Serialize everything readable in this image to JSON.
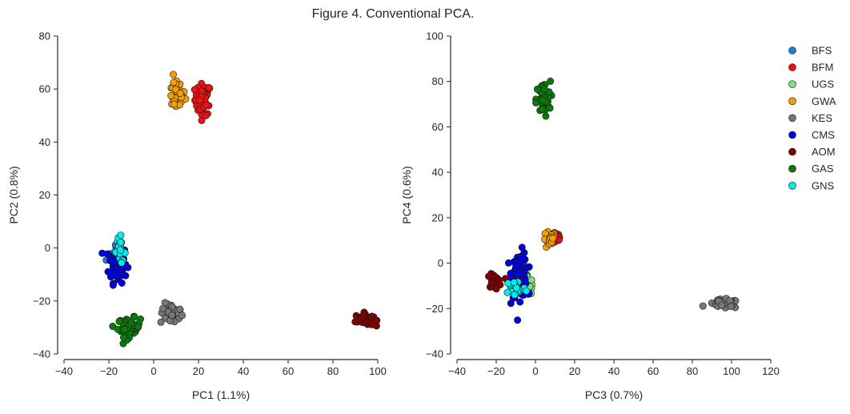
{
  "figure": {
    "title": "Figure 4. Conventional PCA."
  },
  "legend": {
    "placement": "right",
    "entries": [
      {
        "name": "BFS",
        "color": "#1f77e8"
      },
      {
        "name": "BFM",
        "color": "#ee1111"
      },
      {
        "name": "UGS",
        "color": "#7ee07e"
      },
      {
        "name": "GWA",
        "color": "#f5a000"
      },
      {
        "name": "KES",
        "color": "#777777"
      },
      {
        "name": "CMS",
        "color": "#0000dd"
      },
      {
        "name": "AOM",
        "color": "#800000"
      },
      {
        "name": "GAS",
        "color": "#0a7a0a"
      },
      {
        "name": "GNS",
        "color": "#00eeee"
      }
    ]
  },
  "chart_data": [
    {
      "type": "scatter",
      "xlabel": "PC1 (1.1%)",
      "ylabel": "PC2 (0.8%)",
      "xlim": [
        -40,
        100
      ],
      "ylim": [
        -40,
        80
      ],
      "xticks": [
        "−40",
        "−20",
        "0",
        "20",
        "40",
        "60",
        "80",
        "100"
      ],
      "yticks": [
        "−40",
        "−20",
        "0",
        "20",
        "40",
        "60",
        "80"
      ],
      "grid": false,
      "clusters": [
        {
          "name": "BFS",
          "x": -16,
          "y": -3,
          "spread_x": 2.5,
          "spread_y": 3,
          "n": 12
        },
        {
          "name": "BFM",
          "x": 22,
          "y": 56,
          "spread_x": 1.8,
          "spread_y": 3,
          "n": 45
        },
        {
          "name": "GWA",
          "x": 10,
          "y": 58,
          "spread_x": 2,
          "spread_y": 3,
          "n": 30
        },
        {
          "name": "KES",
          "x": 8,
          "y": -25,
          "spread_x": 2.5,
          "spread_y": 2,
          "n": 28
        },
        {
          "name": "CMS",
          "x": -16,
          "y": -6,
          "spread_x": 2,
          "spread_y": 3.5,
          "n": 80
        },
        {
          "name": "AOM",
          "x": 94,
          "y": -27,
          "spread_x": 2,
          "spread_y": 1.2,
          "n": 40
        },
        {
          "name": "GAS",
          "x": -11,
          "y": -30,
          "spread_x": 2.5,
          "spread_y": 1.8,
          "n": 55
        },
        {
          "name": "GNS",
          "x": -15,
          "y": -1,
          "spread_x": 1.2,
          "spread_y": 2.5,
          "n": 22
        }
      ]
    },
    {
      "type": "scatter",
      "xlabel": "PC3 (0.7%)",
      "ylabel": "PC4 (0.6%)",
      "xlim": [
        -40,
        120
      ],
      "ylim": [
        -40,
        100
      ],
      "xticks": [
        "−40",
        "−20",
        "0",
        "20",
        "40",
        "60",
        "80",
        "100",
        "120"
      ],
      "yticks": [
        "−40",
        "−20",
        "0",
        "20",
        "40",
        "60",
        "80",
        "100"
      ],
      "grid": false,
      "clusters": [
        {
          "name": "BFS",
          "x": -7,
          "y": -6,
          "spread_x": 1.5,
          "spread_y": 3,
          "n": 12
        },
        {
          "name": "BFM",
          "x": 10,
          "y": 11,
          "spread_x": 1.8,
          "spread_y": 1.5,
          "n": 40
        },
        {
          "name": "UGS",
          "x": -4,
          "y": -10,
          "spread_x": 2,
          "spread_y": 2,
          "n": 20
        },
        {
          "name": "GWA",
          "x": 7,
          "y": 10,
          "spread_x": 1.5,
          "spread_y": 2,
          "n": 28
        },
        {
          "name": "KES",
          "x": 96,
          "y": -18,
          "spread_x": 4,
          "spread_y": 1,
          "n": 30
        },
        {
          "name": "CMS",
          "x": -8,
          "y": -5,
          "spread_x": 2,
          "spread_y": 5,
          "n": 90
        },
        {
          "name": "AOM",
          "x": -21,
          "y": -8,
          "spread_x": 1.8,
          "spread_y": 1.5,
          "n": 30
        },
        {
          "name": "GAS",
          "x": 4,
          "y": 72,
          "spread_x": 1.8,
          "spread_y": 4,
          "n": 45
        },
        {
          "name": "GNS",
          "x": -10,
          "y": -11,
          "spread_x": 2.5,
          "spread_y": 2,
          "n": 35
        }
      ]
    }
  ]
}
